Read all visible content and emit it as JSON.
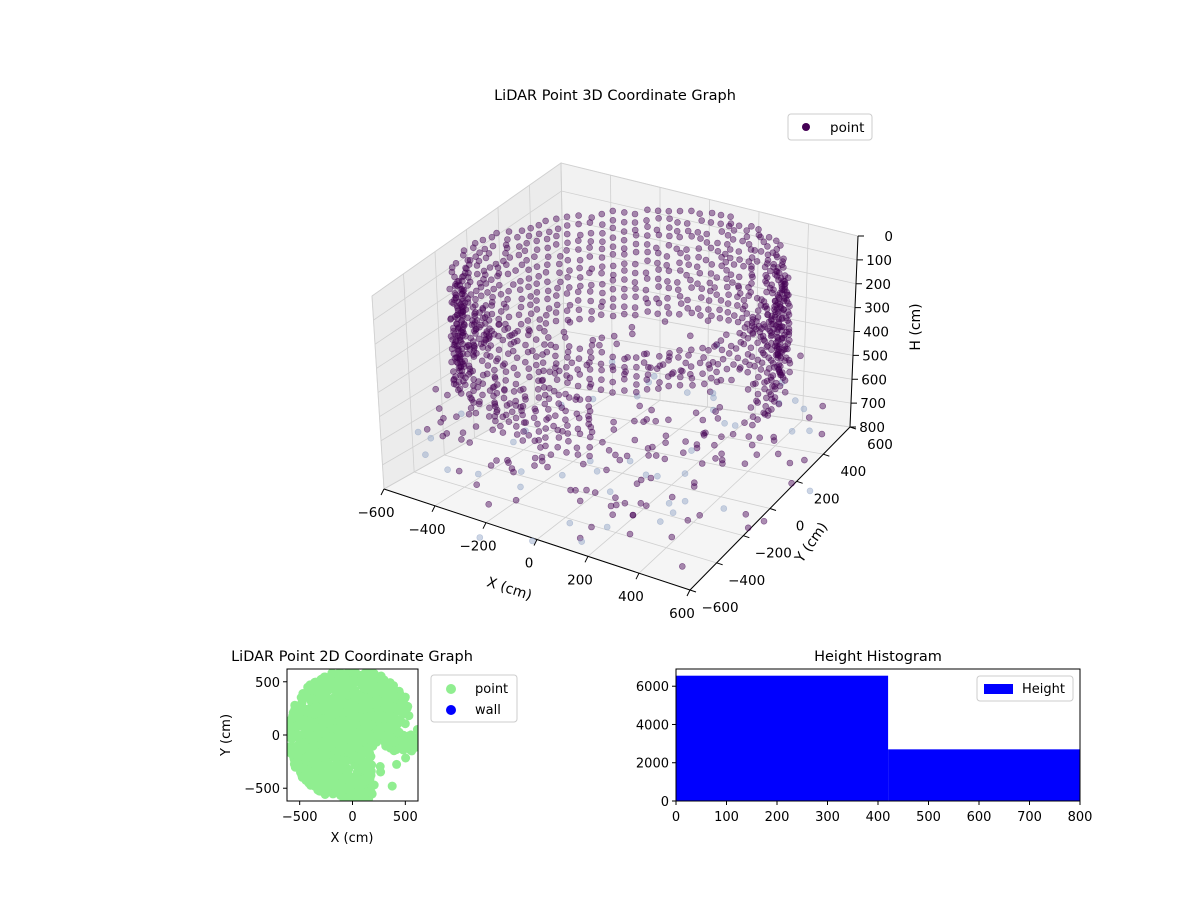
{
  "chart_data": [
    {
      "type": "scatter",
      "title": "LiDAR Point 3D Coordinate Graph",
      "xlabel": "X (cm)",
      "ylabel": "Y (cm)",
      "zlabel": "H (cm)",
      "x_ticks": [
        "−600",
        "−400",
        "−200",
        "0",
        "200",
        "400",
        "600"
      ],
      "y_ticks": [
        "−600",
        "−400",
        "−200",
        "0",
        "200",
        "400",
        "600"
      ],
      "z_ticks": [
        "0",
        "100",
        "200",
        "300",
        "400",
        "500",
        "600",
        "700",
        "800"
      ],
      "xlim": [
        -600,
        600
      ],
      "ylim": [
        -600,
        600
      ],
      "zlim": [
        0,
        800
      ],
      "z_axis_inverted": true,
      "legend": {
        "position": "top-right",
        "entries": [
          {
            "name": "point",
            "color": "#440154"
          }
        ]
      },
      "colors": {
        "point": "#440154",
        "point_light": "#8ea2c5"
      },
      "series": [
        {
          "name": "point",
          "description_of_shape": "ring-shaped wall of points of radius ~600 cm from H 0 to ~400 cm, with scattered points extending to H ~800 cm",
          "ring_radius": 600,
          "height_range": [
            0,
            420
          ],
          "scatter_height_range": [
            420,
            800
          ]
        }
      ]
    },
    {
      "type": "scatter",
      "title": "LiDAR Point 2D Coordinate Graph",
      "xlabel": "X (cm)",
      "ylabel": "Y (cm)",
      "x_ticks": [
        "−500",
        "0",
        "500"
      ],
      "y_ticks": [
        "−500",
        "0",
        "500"
      ],
      "xlim": [
        -620,
        620
      ],
      "ylim": [
        -620,
        620
      ],
      "legend": {
        "position": "outside-right",
        "entries": [
          {
            "name": "point",
            "color": "#90ee90"
          },
          {
            "name": "wall",
            "color": "#0000ff"
          }
        ]
      },
      "series": [
        {
          "name": "point",
          "color": "#90ee90",
          "description_of_shape": "filled disc of radius ~620 cm with sparse lower-right region"
        },
        {
          "name": "wall",
          "color": "#0000ff",
          "values": []
        }
      ]
    },
    {
      "type": "bar",
      "title": "Height Histogram",
      "xlabel": "",
      "ylabel": "",
      "x_ticks": [
        "0",
        "100",
        "200",
        "300",
        "400",
        "500",
        "600",
        "700",
        "800"
      ],
      "y_ticks": [
        "0",
        "2000",
        "4000",
        "6000"
      ],
      "xlim": [
        0,
        800
      ],
      "ylim": [
        0,
        6900
      ],
      "bins": [
        {
          "from": 0,
          "to": 420,
          "count": 6550
        },
        {
          "from": 420,
          "to": 800,
          "count": 2700
        }
      ],
      "legend": {
        "position": "top-right",
        "entries": [
          {
            "name": "Height",
            "color": "#0000ff"
          }
        ]
      },
      "color": "#0000ff"
    }
  ]
}
